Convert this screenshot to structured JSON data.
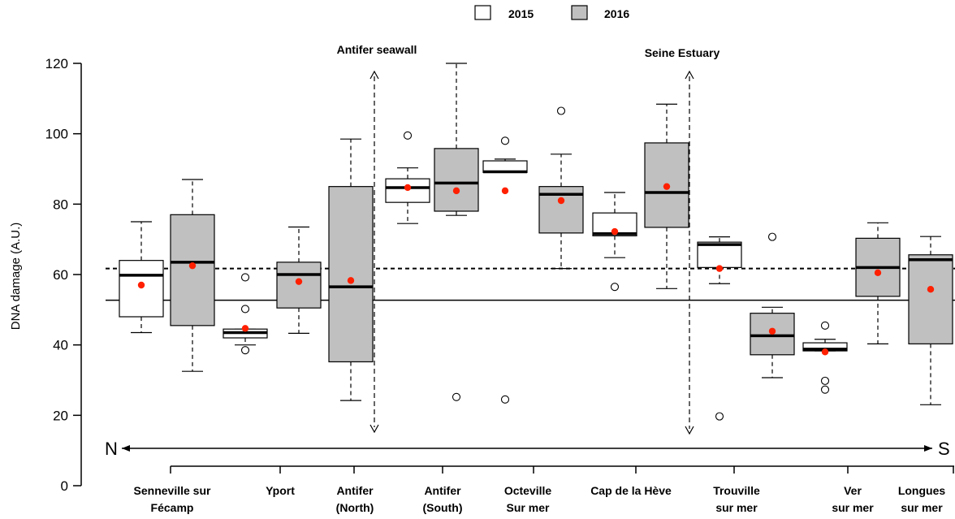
{
  "chart_data": {
    "type": "box",
    "ylabel": "DNA damage (A.U.)",
    "ylim": [
      0,
      120
    ],
    "yticks": [
      0,
      20,
      40,
      60,
      80,
      100,
      120
    ],
    "legend": {
      "placement": "top-center",
      "entries": [
        {
          "label": "2015",
          "fill": "#ffffff"
        },
        {
          "label": "2016",
          "fill": "#c0c0c0"
        }
      ]
    },
    "reference_lines": [
      {
        "style": "dashed",
        "value": 61.7
      },
      {
        "style": "solid",
        "value": 52.7
      }
    ],
    "sites": [
      {
        "line1": "Senneville sur",
        "line2": "Fécamp"
      },
      {
        "line1": "Yport",
        "line2": ""
      },
      {
        "line1": "Antifer",
        "line2": "(North)"
      },
      {
        "line1": "Antifer",
        "line2": "(South)"
      },
      {
        "line1": "Octeville",
        "line2": "Sur mer"
      },
      {
        "line1": "Cap de la Hève",
        "line2": ""
      },
      {
        "line1": "Trouville",
        "line2": "sur mer"
      },
      {
        "line1": "Ver",
        "line2": "sur mer"
      },
      {
        "line1": "Longues",
        "line2": "sur mer"
      }
    ],
    "boxes": [
      {
        "year": "2015",
        "site": "Senneville sur Fécamp",
        "whisker_low": 43.5,
        "q1": 48,
        "median": 59.8,
        "q3": 64,
        "whisker_high": 75,
        "mean": 57,
        "outliers": []
      },
      {
        "year": "2016",
        "site": "Senneville sur Fécamp",
        "whisker_low": 32.5,
        "q1": 45.5,
        "median": 63.5,
        "q3": 77,
        "whisker_high": 87,
        "mean": 62.5,
        "outliers": []
      },
      {
        "year": "2015",
        "site": "Yport",
        "whisker_low": 40,
        "q1": 42,
        "median": 43.5,
        "q3": 44.5,
        "whisker_high": 44.5,
        "mean": 44.7,
        "outliers": [
          59.2,
          50.2,
          38.5
        ]
      },
      {
        "year": "2016",
        "site": "Yport",
        "whisker_low": 43.3,
        "q1": 50.5,
        "median": 60,
        "q3": 63.5,
        "whisker_high": 73.5,
        "mean": 58,
        "outliers": []
      },
      {
        "year": "2016",
        "site": "Antifer (North)",
        "whisker_low": 24.2,
        "q1": 35.2,
        "median": 56.5,
        "q3": 85,
        "whisker_high": 98.5,
        "mean": 58.3,
        "outliers": []
      },
      {
        "year": "2015",
        "site": "Antifer (South)",
        "whisker_low": 74.5,
        "q1": 80.5,
        "median": 84.7,
        "q3": 87.2,
        "whisker_high": 90.3,
        "mean": 84.7,
        "outliers": [
          99.5
        ]
      },
      {
        "year": "2016",
        "site": "Antifer (South)",
        "whisker_low": 76.8,
        "q1": 78,
        "median": 86,
        "q3": 95.8,
        "whisker_high": 120,
        "mean": 83.8,
        "outliers": [
          25.2
        ]
      },
      {
        "year": "2015",
        "site": "Octeville Sur mer",
        "whisker_low": 89,
        "q1": 89,
        "median": 89.2,
        "q3": 92.3,
        "whisker_high": 92.8,
        "mean": 83.8,
        "outliers": [
          98,
          24.5
        ]
      },
      {
        "year": "2016",
        "site": "Octeville Sur mer",
        "whisker_low": 61.7,
        "q1": 71.8,
        "median": 82.8,
        "q3": 85,
        "whisker_high": 94.2,
        "mean": 81,
        "outliers": [
          106.5
        ]
      },
      {
        "year": "2015",
        "site": "Cap de la Hève",
        "whisker_low": 64.8,
        "q1": 71,
        "median": 71.6,
        "q3": 77.5,
        "whisker_high": 83.3,
        "mean": 72.2,
        "outliers": [
          56.5
        ]
      },
      {
        "year": "2016",
        "site": "Cap de la Hève",
        "whisker_low": 56,
        "q1": 73.4,
        "median": 83.3,
        "q3": 97.4,
        "whisker_high": 108.4,
        "mean": 85,
        "outliers": []
      },
      {
        "year": "2015",
        "site": "Trouville sur mer",
        "whisker_low": 57.4,
        "q1": 62,
        "median": 68.5,
        "q3": 69.2,
        "whisker_high": 70.7,
        "mean": 61.7,
        "outliers": [
          19.7
        ]
      },
      {
        "year": "2016",
        "site": "Trouville sur mer",
        "whisker_low": 30.7,
        "q1": 37.2,
        "median": 42.6,
        "q3": 49,
        "whisker_high": 50.7,
        "mean": 43.9,
        "outliers": [
          70.7
        ]
      },
      {
        "year": "2015",
        "site": "Ver sur mer",
        "whisker_low": 38.3,
        "q1": 38.3,
        "median": 38.8,
        "q3": 40.6,
        "whisker_high": 41.6,
        "mean": 38,
        "outliers": [
          45.5,
          29.8,
          27.3
        ]
      },
      {
        "year": "2016",
        "site": "Ver sur mer",
        "whisker_low": 40.3,
        "q1": 53.8,
        "median": 62,
        "q3": 70.3,
        "whisker_high": 74.7,
        "mean": 60.5,
        "outliers": []
      },
      {
        "year": "2016",
        "site": "Longues sur mer",
        "whisker_low": 23,
        "q1": 40.3,
        "median": 64.2,
        "q3": 65.6,
        "whisker_high": 70.8,
        "mean": 55.8,
        "outliers": []
      }
    ],
    "annotations": [
      {
        "text": "Antifer seawall"
      },
      {
        "text": "Seine Estuary"
      }
    ],
    "direction": {
      "left": "N",
      "right": "S"
    }
  }
}
